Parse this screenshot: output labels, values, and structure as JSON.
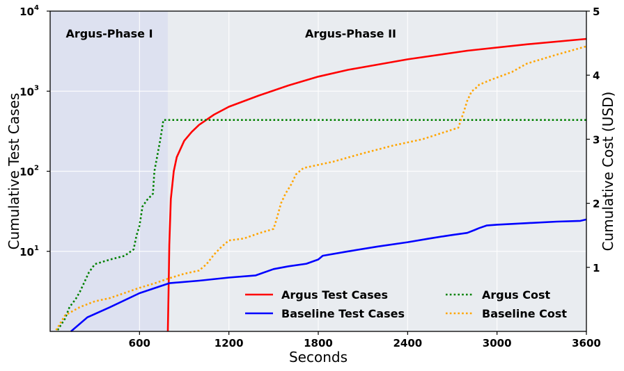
{
  "chart_data": {
    "type": "line",
    "xlabel": "Seconds",
    "ylabel_left": "Cumulative Test Cases",
    "ylabel_right": "Cumulative Cost (USD)",
    "xlim": [
      0,
      3600
    ],
    "ylim_left": [
      1,
      10000
    ],
    "yscale_left": "log",
    "ylim_right": [
      0,
      5
    ],
    "grid": true,
    "legend_position": "bottom-right",
    "x_ticks": [
      600,
      1200,
      1800,
      2400,
      3000,
      3600
    ],
    "y_left_ticks": [
      {
        "base": "10",
        "exp": "1",
        "value": 10
      },
      {
        "base": "10",
        "exp": "2",
        "value": 100
      },
      {
        "base": "10",
        "exp": "3",
        "value": 1000
      },
      {
        "base": "10",
        "exp": "4",
        "value": 10000
      }
    ],
    "y_right_ticks": [
      1,
      2,
      3,
      4,
      5
    ],
    "phases": [
      {
        "label": "Argus-Phase I",
        "start": 0,
        "end": 790,
        "color": "#dde1f0"
      },
      {
        "label": "Argus-Phase II",
        "start": 790,
        "end": 3600,
        "color": "#e9ecf0"
      }
    ],
    "series": [
      {
        "name": "Argus Test Cases",
        "axis": "left",
        "color": "#ff0000",
        "style": "solid",
        "x": [
          790,
          795,
          800,
          810,
          830,
          850,
          900,
          950,
          1000,
          1100,
          1200,
          1400,
          1600,
          1800,
          2000,
          2400,
          2800,
          3200,
          3600
        ],
        "y": [
          1,
          3,
          12,
          45,
          100,
          150,
          240,
          310,
          380,
          510,
          640,
          880,
          1180,
          1520,
          1850,
          2500,
          3200,
          3850,
          4500
        ]
      },
      {
        "name": "Baseline Test Cases",
        "axis": "left",
        "color": "#0000ff",
        "style": "solid",
        "x": [
          140,
          250,
          400,
          600,
          800,
          1000,
          1200,
          1380,
          1500,
          1600,
          1720,
          1800,
          1830,
          2000,
          2200,
          2400,
          2550,
          2650,
          2700,
          2800,
          2850,
          2880,
          2930,
          3000,
          3200,
          3400,
          3560,
          3600
        ],
        "y": [
          1,
          1.5,
          2,
          3,
          4,
          4.3,
          4.7,
          5,
          6,
          6.5,
          7,
          7.9,
          8.8,
          10,
          11.5,
          13,
          14.5,
          15.5,
          16,
          17,
          18.5,
          19.5,
          21,
          21.5,
          22.5,
          23.5,
          24,
          25
        ]
      },
      {
        "name": "Argus Cost",
        "axis": "right",
        "color": "#008000",
        "style": "dotted",
        "x": [
          50,
          100,
          130,
          170,
          200,
          220,
          260,
          300,
          400,
          500,
          560,
          580,
          600,
          620,
          650,
          690,
          700,
          720,
          740,
          760,
          3600
        ],
        "y": [
          0.02,
          0.2,
          0.38,
          0.5,
          0.62,
          0.72,
          0.92,
          1.05,
          1.12,
          1.18,
          1.28,
          1.5,
          1.65,
          1.95,
          2.05,
          2.15,
          2.5,
          2.75,
          3.0,
          3.3,
          3.3
        ]
      },
      {
        "name": "Baseline Cost",
        "axis": "right",
        "color": "#ffa500",
        "style": "dotted",
        "x": [
          40,
          100,
          200,
          300,
          400,
          500,
          600,
          700,
          800,
          900,
          1000,
          1050,
          1100,
          1150,
          1200,
          1300,
          1400,
          1500,
          1520,
          1550,
          1580,
          1620,
          1650,
          1700,
          1900,
          2100,
          2300,
          2500,
          2740,
          2780,
          2800,
          2830,
          2850,
          2880,
          2950,
          3100,
          3200,
          3400,
          3600
        ],
        "y": [
          0.02,
          0.25,
          0.38,
          0.47,
          0.52,
          0.6,
          0.68,
          0.75,
          0.83,
          0.9,
          0.95,
          1.05,
          1.2,
          1.32,
          1.42,
          1.45,
          1.53,
          1.6,
          1.75,
          2.0,
          2.15,
          2.3,
          2.45,
          2.55,
          2.65,
          2.78,
          2.9,
          3.0,
          3.18,
          3.45,
          3.6,
          3.75,
          3.78,
          3.85,
          3.92,
          4.05,
          4.18,
          4.32,
          4.45
        ]
      }
    ]
  }
}
